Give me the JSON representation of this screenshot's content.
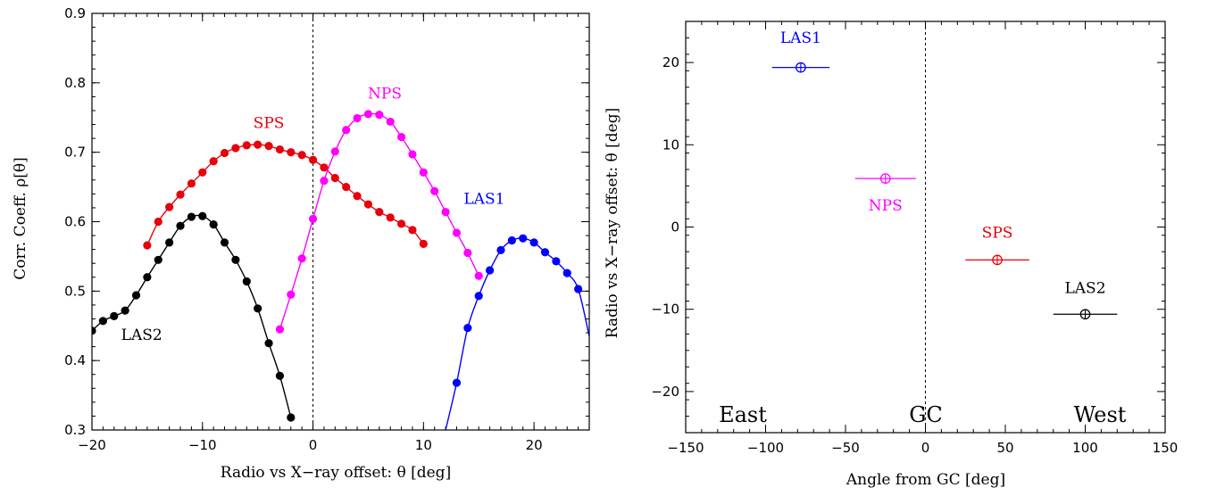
{
  "chart_data": [
    {
      "type": "line",
      "title": "",
      "xlabel": "Radio vs X−ray offset: θ [deg]",
      "ylabel": "Corr. Coeff. ρ[θ]",
      "xlim": [
        -20,
        25
      ],
      "ylim": [
        0.3,
        0.9
      ],
      "xticks": [
        -20,
        -10,
        0,
        10,
        20
      ],
      "xtick_labels": [
        "−20",
        "−10",
        "0",
        "10",
        "20"
      ],
      "yticks": [
        0.3,
        0.4,
        0.5,
        0.6,
        0.7,
        0.8,
        0.9
      ],
      "ytick_labels": [
        "0.3",
        "0.4",
        "0.5",
        "0.6",
        "0.7",
        "0.8",
        "0.9"
      ],
      "vline_x": 0,
      "series": [
        {
          "name": "LAS2",
          "color": "#000000",
          "x": [
            -20,
            -19,
            -18,
            -17,
            -16,
            -15,
            -14,
            -13,
            -12,
            -11,
            -10,
            -9,
            -8,
            -7,
            -6,
            -5,
            -4,
            -3,
            -2
          ],
          "y": [
            0.443,
            0.457,
            0.464,
            0.472,
            0.494,
            0.52,
            0.545,
            0.57,
            0.594,
            0.607,
            0.608,
            0.596,
            0.57,
            0.545,
            0.514,
            0.475,
            0.425,
            0.378,
            0.318
          ],
          "label_x": -15.5,
          "label_y": 0.43
        },
        {
          "name": "SPS",
          "color": "#e8000b",
          "x": [
            -15,
            -14,
            -13,
            -12,
            -11,
            -10,
            -9,
            -8,
            -7,
            -6,
            -5,
            -4,
            -3,
            -2,
            -1,
            0,
            1,
            2,
            3,
            4,
            5,
            6,
            7,
            8,
            9,
            10
          ],
          "y": [
            0.566,
            0.6,
            0.621,
            0.639,
            0.655,
            0.671,
            0.687,
            0.699,
            0.706,
            0.71,
            0.711,
            0.709,
            0.704,
            0.7,
            0.696,
            0.689,
            0.678,
            0.663,
            0.65,
            0.637,
            0.625,
            0.614,
            0.606,
            0.597,
            0.588,
            0.568
          ],
          "label_x": -4,
          "label_y": 0.735
        },
        {
          "name": "NPS",
          "color": "#ff00ff",
          "x": [
            -3,
            -2,
            -1,
            0,
            1,
            2,
            3,
            4,
            5,
            6,
            7,
            8,
            9,
            10,
            11,
            12,
            13,
            14,
            15
          ],
          "y": [
            0.445,
            0.495,
            0.547,
            0.604,
            0.659,
            0.701,
            0.732,
            0.749,
            0.755,
            0.754,
            0.744,
            0.722,
            0.697,
            0.671,
            0.644,
            0.614,
            0.584,
            0.555,
            0.522
          ],
          "label_x": 6.5,
          "label_y": 0.777
        },
        {
          "name": "LAS1",
          "color": "#0000ff",
          "x": [
            12,
            13,
            14,
            15,
            16,
            17,
            18,
            19,
            20,
            21,
            22,
            23,
            24
          ],
          "y": [
            0.3,
            0.368,
            0.447,
            0.493,
            0.53,
            0.559,
            0.573,
            0.576,
            0.57,
            0.556,
            0.543,
            0.526,
            0.503
          ],
          "curve_end_x": 25,
          "curve_end_y": 0.435,
          "label_x": 15.5,
          "label_y": 0.626
        }
      ]
    },
    {
      "type": "scatter",
      "title": "",
      "xlabel": "Angle from GC [deg]",
      "ylabel": "Radio vs X−ray offset: θ [deg]",
      "xlim": [
        -150,
        150
      ],
      "ylim": [
        -25,
        25
      ],
      "xticks": [
        -150,
        -100,
        -50,
        0,
        50,
        100,
        150
      ],
      "xtick_labels": [
        "−150",
        "−100",
        "−50",
        "0",
        "50",
        "100",
        "150"
      ],
      "yticks": [
        -20,
        -10,
        0,
        10,
        20
      ],
      "ytick_labels": [
        "−20",
        "−10",
        "0",
        "10",
        "20"
      ],
      "vline_x": 0,
      "region_labels": {
        "east": "East",
        "gc": "GC",
        "west": "West"
      },
      "points": [
        {
          "name": "LAS1",
          "color": "#0000ff",
          "x": -78,
          "y": 19.4,
          "xerr": 18,
          "label_x": -78,
          "label_y": 22.4
        },
        {
          "name": "NPS",
          "color": "#ff00ff",
          "x": -25,
          "y": 5.9,
          "xerr": 19,
          "label_x": -25,
          "label_y": 2.0
        },
        {
          "name": "SPS",
          "color": "#e8000b",
          "x": 45,
          "y": -4.0,
          "xerr": 20,
          "label_x": 45,
          "label_y": -1.3
        },
        {
          "name": "LAS2",
          "color": "#000000",
          "x": 100,
          "y": -10.6,
          "xerr": 20,
          "label_x": 100,
          "label_y": -8.0
        }
      ]
    }
  ]
}
